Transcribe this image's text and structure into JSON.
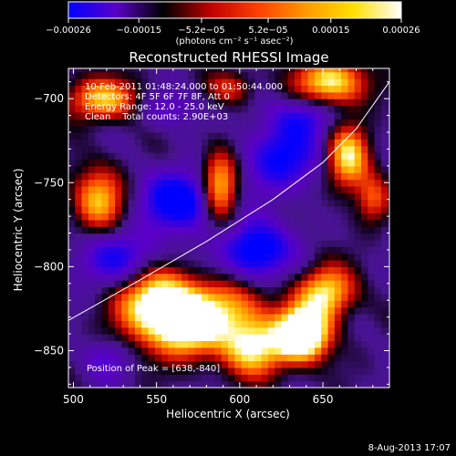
{
  "chart_data": {
    "type": "heatmap",
    "title": "Reconstructed RHESSI Image",
    "xlabel": "Heliocentric X (arcsec)",
    "ylabel": "Heliocentric Y (arcsec)",
    "xlim": [
      497,
      690
    ],
    "ylim": [
      -872,
      -682
    ],
    "x_ticks": [
      500,
      550,
      600,
      650
    ],
    "y_ticks": [
      -700,
      -750,
      -800,
      -850
    ],
    "x_tick_labels": [
      "500",
      "550",
      "600",
      "650"
    ],
    "y_tick_labels": [
      "−700",
      "−750",
      "−800",
      "−850"
    ],
    "colorbar": {
      "range": [
        -0.00026,
        0.00026
      ],
      "tick_values": [
        -0.00026,
        -0.00015,
        -5.2e-05,
        5.2e-05,
        0.00015,
        0.00026
      ],
      "tick_labels": [
        "−0.00026",
        "−0.00015",
        "−5.2e−05",
        "5.2e−05",
        "0.00015",
        "0.00026"
      ],
      "unit_label": "(photons cm⁻² s⁻¹ asec⁻²)",
      "colors": [
        "#0000ff",
        "#5a00c8",
        "#000000",
        "#c00000",
        "#ff4000",
        "#ff9a00",
        "#ffe000",
        "#ffffff"
      ]
    },
    "annotations": [
      "10-Feb-2011 01:48:24.000 to 01:50:44.000",
      "Detectors: 4F 5F 6F 7F 8F, Att 0",
      "Energy Range: 12.0 - 25.0 keV",
      "Clean    Total counts: 2.90E+03"
    ],
    "peak_label": "Position of Peak = [638,-840]",
    "peak": {
      "x": 638,
      "y": -840
    },
    "limb_curve": [
      [
        497,
        -832
      ],
      [
        540,
        -808
      ],
      [
        580,
        -785
      ],
      [
        620,
        -760
      ],
      [
        650,
        -738
      ],
      [
        670,
        -718
      ],
      [
        690,
        -690
      ]
    ],
    "sources": [
      {
        "x": 550,
        "y": -822,
        "sx": 16,
        "sy": 16,
        "amp": 1.9
      },
      {
        "x": 570,
        "y": -835,
        "sx": 13,
        "sy": 13,
        "amp": 1.4
      },
      {
        "x": 595,
        "y": -825,
        "sx": 16,
        "sy": 13,
        "amp": 1.0
      },
      {
        "x": 608,
        "y": -848,
        "sx": 14,
        "sy": 12,
        "amp": 1.4
      },
      {
        "x": 638,
        "y": -840,
        "sx": 11,
        "sy": 11,
        "amp": 2.3
      },
      {
        "x": 652,
        "y": -815,
        "sx": 12,
        "sy": 11,
        "amp": 1.4
      },
      {
        "x": 588,
        "y": -752,
        "sx": 8,
        "sy": 15,
        "amp": 1.5
      },
      {
        "x": 515,
        "y": -760,
        "sx": 11,
        "sy": 14,
        "amp": 1.2
      },
      {
        "x": 518,
        "y": -700,
        "sx": 17,
        "sy": 9,
        "amp": 1.2
      },
      {
        "x": 595,
        "y": -693,
        "sx": 10,
        "sy": 7,
        "amp": 0.7
      },
      {
        "x": 655,
        "y": -690,
        "sx": 15,
        "sy": 10,
        "amp": 1.5
      },
      {
        "x": 665,
        "y": -735,
        "sx": 9,
        "sy": 14,
        "amp": 1.4
      },
      {
        "x": 680,
        "y": -760,
        "sx": 7,
        "sy": 10,
        "amp": 0.8
      },
      {
        "x": 565,
        "y": -760,
        "sx": 16,
        "sy": 12,
        "amp": -1.3
      },
      {
        "x": 625,
        "y": -735,
        "sx": 16,
        "sy": 14,
        "amp": -1.0
      },
      {
        "x": 610,
        "y": -790,
        "sx": 14,
        "sy": 12,
        "amp": -1.3
      },
      {
        "x": 530,
        "y": -795,
        "sx": 20,
        "sy": 12,
        "amp": -0.9
      },
      {
        "x": 640,
        "y": -710,
        "sx": 14,
        "sy": 9,
        "amp": -0.7
      },
      {
        "x": 520,
        "y": -855,
        "sx": 10,
        "sy": 8,
        "amp": -0.5
      },
      {
        "x": 555,
        "y": -705,
        "sx": 14,
        "sy": 8,
        "amp": -0.5
      }
    ]
  },
  "footer": {
    "date": "8-Aug-2013 17:07"
  }
}
